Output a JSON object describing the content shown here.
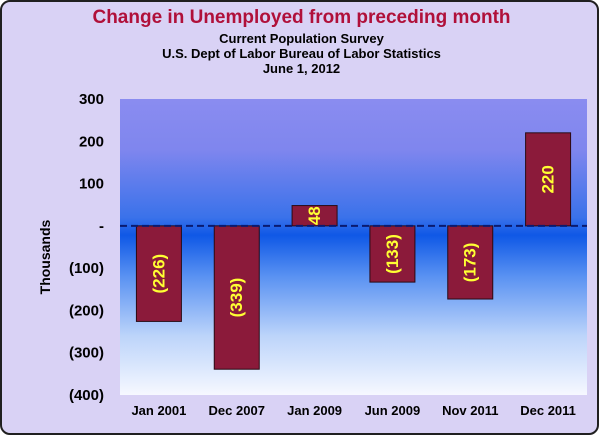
{
  "chart_data": {
    "type": "bar",
    "title": "Change in Unemployed from preceding month",
    "subtitles": [
      "Current Population Survey",
      "U.S. Dept of Labor Bureau of Labor Statistics",
      "June 1, 2012"
    ],
    "ylabel": "Thousands",
    "xlabel": "",
    "ylim": [
      -400,
      300
    ],
    "yticks": [
      300,
      200,
      100,
      0,
      -100,
      -200,
      -300,
      -400
    ],
    "ytick_labels": [
      "300",
      "200",
      "100",
      "-",
      "(100)",
      "(200)",
      "(300)",
      "(400)"
    ],
    "categories": [
      "Jan 2001",
      "Dec 2007",
      "Jan 2009",
      "Jun 2009",
      "Nov 2011",
      "Dec 2011"
    ],
    "values": [
      -226,
      -339,
      48,
      -133,
      -173,
      220
    ],
    "data_labels": [
      "(226)",
      "(339)",
      "48",
      "(133)",
      "(173)",
      "220"
    ],
    "grid": false,
    "zero_line": "dashed",
    "colors": {
      "bar": "#8b1a3a",
      "bar_edge": "#2a0a14",
      "data_label": "#ffff33",
      "title": "#b0103a",
      "background": "#d9d2f5",
      "plot_top": "#8888ee",
      "plot_mid": "#1a5fe0",
      "plot_bottom": "#f4f6ff"
    }
  }
}
